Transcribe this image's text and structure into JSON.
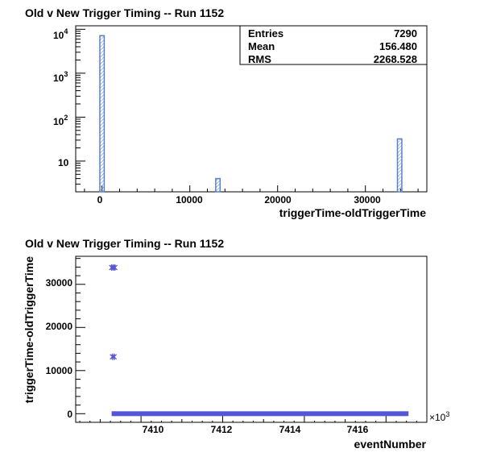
{
  "chart_data": [
    {
      "type": "bar",
      "title": "Old v New Trigger Timing -- Run 1152",
      "xlabel": "triggerTime-oldTriggerTime",
      "ylabel": "",
      "xlim": [
        -3000,
        37000
      ],
      "ylim": [
        2,
        12000
      ],
      "y_scale": "log",
      "x_ticks": [
        "0",
        "10000",
        "20000",
        "30000"
      ],
      "y_ticks": [
        {
          "base": "10",
          "exp": "4"
        },
        {
          "base": "10",
          "exp": "3"
        },
        {
          "base": "10",
          "exp": "2"
        },
        {
          "base": "10",
          "exp": ""
        }
      ],
      "bars": [
        {
          "x": 0,
          "value": 7150
        },
        {
          "x": 13200,
          "value": 4
        },
        {
          "x": 33900,
          "value": 32
        }
      ],
      "bar_color": "#5b7fc9",
      "stats": [
        {
          "label": "Entries",
          "value": "7290"
        },
        {
          "label": "Mean",
          "value": "156.480"
        },
        {
          "label": "RMS",
          "value": "2268.528"
        }
      ]
    },
    {
      "type": "scatter",
      "title": "Old v New Trigger Timing -- Run 1152",
      "xlabel": "eventNumber",
      "ylabel": "triggerTime-oldTriggerTime",
      "x_multiplier": "×10",
      "x_multiplier_exp": "3",
      "xlim": [
        7408.4,
        7417.0
      ],
      "ylim": [
        -2000,
        36500
      ],
      "x_ticks": [
        "7410",
        "7412",
        "7414",
        "7416"
      ],
      "y_ticks": [
        "30000",
        "20000",
        "10000",
        "0"
      ],
      "clusters": [
        {
          "x_start": 7409.28,
          "x_end": 7409.36,
          "y": 33900
        },
        {
          "x_start": 7409.3,
          "x_end": 7409.34,
          "y": 13200
        },
        {
          "x_start": 7409.28,
          "x_end": 7416.55,
          "y": 0
        }
      ],
      "marker_color": "#5555d8"
    }
  ]
}
